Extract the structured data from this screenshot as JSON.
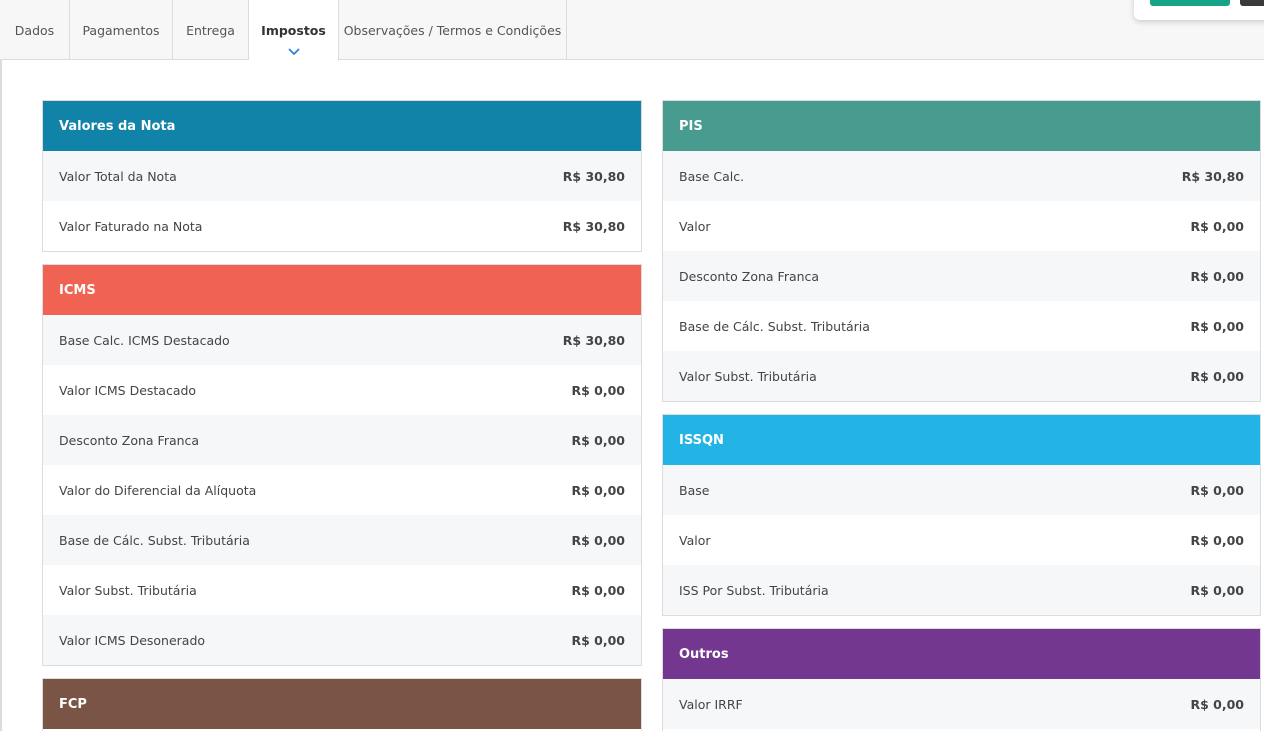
{
  "tabs": [
    {
      "label": "Dados"
    },
    {
      "label": "Pagamentos"
    },
    {
      "label": "Entrega"
    },
    {
      "label": "Impostos"
    },
    {
      "label": "Observações / Termos e Condições"
    }
  ],
  "active_tab": "Impostos",
  "colors": {
    "valores": "#1182a8",
    "icms": "#f06353",
    "fcp": "#7a5546",
    "pis": "#479b8f",
    "issqn": "#24b3e5",
    "outros": "#73378f"
  },
  "cards": {
    "valores": {
      "title": "Valores da Nota",
      "rows": [
        {
          "label": "Valor Total da Nota",
          "value": "R$ 30,80"
        },
        {
          "label": "Valor Faturado na Nota",
          "value": "R$ 30,80"
        }
      ]
    },
    "icms": {
      "title": "ICMS",
      "rows": [
        {
          "label": "Base Calc. ICMS Destacado",
          "value": "R$ 30,80"
        },
        {
          "label": "Valor ICMS Destacado",
          "value": "R$ 0,00"
        },
        {
          "label": "Desconto Zona Franca",
          "value": "R$ 0,00"
        },
        {
          "label": "Valor do Diferencial da Alíquota",
          "value": "R$ 0,00"
        },
        {
          "label": "Base de Cálc. Subst. Tributária",
          "value": "R$ 0,00"
        },
        {
          "label": "Valor Subst. Tributária",
          "value": "R$ 0,00"
        },
        {
          "label": "Valor ICMS Desonerado",
          "value": "R$ 0,00"
        }
      ]
    },
    "fcp": {
      "title": "FCP",
      "rows": []
    },
    "pis": {
      "title": "PIS",
      "rows": [
        {
          "label": "Base Calc.",
          "value": "R$ 30,80"
        },
        {
          "label": "Valor",
          "value": "R$ 0,00"
        },
        {
          "label": "Desconto Zona Franca",
          "value": "R$ 0,00"
        },
        {
          "label": "Base de Cálc. Subst. Tributária",
          "value": "R$ 0,00"
        },
        {
          "label": "Valor Subst. Tributária",
          "value": "R$ 0,00"
        }
      ]
    },
    "issqn": {
      "title": "ISSQN",
      "rows": [
        {
          "label": "Base",
          "value": "R$ 0,00"
        },
        {
          "label": "Valor",
          "value": "R$ 0,00"
        },
        {
          "label": "ISS Por Subst. Tributária",
          "value": "R$ 0,00"
        }
      ]
    },
    "outros": {
      "title": "Outros",
      "rows": [
        {
          "label": "Valor IRRF",
          "value": "R$ 0,00"
        }
      ]
    }
  }
}
